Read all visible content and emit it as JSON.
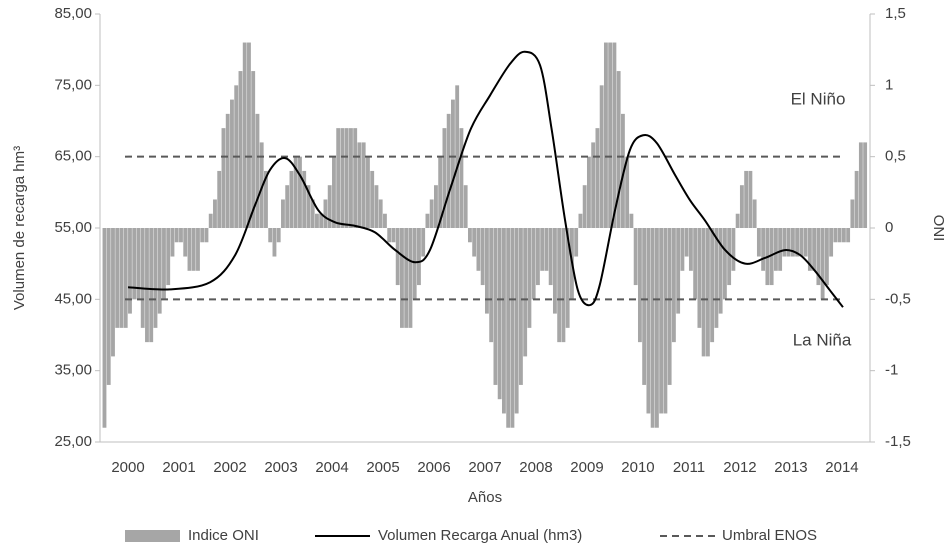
{
  "chart_data": {
    "type": "combo",
    "x_label": "Años",
    "y_label": "Volumen de recarga hm³",
    "y2_label": "ONI",
    "annotations": [
      "El Niño",
      "La Niña"
    ],
    "xlim": [
      1999.45,
      2014.55
    ],
    "xticks": [
      2000,
      2001,
      2002,
      2003,
      2004,
      2005,
      2006,
      2007,
      2008,
      2009,
      2010,
      2011,
      2012,
      2013,
      2014
    ],
    "ylim": [
      25,
      85
    ],
    "yticks": [
      {
        "value": 25,
        "label": "25,00"
      },
      {
        "value": 35,
        "label": "35,00"
      },
      {
        "value": 45,
        "label": "45,00"
      },
      {
        "value": 55,
        "label": "55,00"
      },
      {
        "value": 65,
        "label": "65,00"
      },
      {
        "value": 75,
        "label": "75,00"
      },
      {
        "value": 85,
        "label": "85,00"
      }
    ],
    "y2lim": [
      -1.5,
      1.5
    ],
    "y2ticks": [
      {
        "value": 1.5,
        "label": "1,5"
      },
      1,
      {
        "value": 0.5,
        "label": "0,5"
      },
      0,
      {
        "value": -0.5,
        "label": "-0,5"
      },
      -1,
      {
        "value": -1.5,
        "label": "-1,5"
      }
    ],
    "series": [
      {
        "name": "Indice ONI",
        "type": "bar",
        "axis": "y2",
        "color": "#a6a6a6",
        "values": [
          -1.4,
          -1.1,
          -0.9,
          -0.7,
          -0.7,
          -0.7,
          -0.6,
          -0.5,
          -0.5,
          -0.7,
          -0.8,
          -0.8,
          -0.7,
          -0.6,
          -0.5,
          -0.4,
          -0.2,
          -0.1,
          -0.1,
          -0.2,
          -0.3,
          -0.3,
          -0.3,
          -0.1,
          -0.1,
          0.1,
          0.2,
          0.4,
          0.7,
          0.8,
          0.9,
          1.0,
          1.1,
          1.3,
          1.3,
          1.1,
          0.8,
          0.6,
          0.4,
          -0.1,
          -0.2,
          -0.1,
          0.2,
          0.3,
          0.4,
          0.5,
          0.5,
          0.4,
          0.3,
          0.2,
          0.1,
          0.1,
          0.2,
          0.3,
          0.5,
          0.7,
          0.7,
          0.7,
          0.7,
          0.7,
          0.6,
          0.6,
          0.5,
          0.4,
          0.3,
          0.2,
          0.1,
          -0.1,
          -0.1,
          -0.4,
          -0.7,
          -0.7,
          -0.7,
          -0.5,
          -0.4,
          -0.2,
          0.1,
          0.2,
          0.3,
          0.5,
          0.7,
          0.8,
          0.9,
          1.0,
          0.7,
          0.3,
          -0.1,
          -0.2,
          -0.3,
          -0.4,
          -0.6,
          -0.8,
          -1.1,
          -1.2,
          -1.3,
          -1.4,
          -1.4,
          -1.3,
          -1.1,
          -0.9,
          -0.7,
          -0.5,
          -0.4,
          -0.3,
          -0.3,
          -0.4,
          -0.6,
          -0.8,
          -0.8,
          -0.7,
          -0.5,
          -0.2,
          0.1,
          0.3,
          0.5,
          0.6,
          0.7,
          1.0,
          1.3,
          1.3,
          1.3,
          1.1,
          0.8,
          0.5,
          0.1,
          -0.4,
          -0.8,
          -1.1,
          -1.3,
          -1.4,
          -1.4,
          -1.3,
          -1.3,
          -1.1,
          -0.8,
          -0.6,
          -0.3,
          -0.2,
          -0.3,
          -0.5,
          -0.7,
          -0.9,
          -0.9,
          -0.8,
          -0.7,
          -0.6,
          -0.5,
          -0.4,
          -0.3,
          0.1,
          0.3,
          0.4,
          0.4,
          0.2,
          -0.2,
          -0.3,
          -0.4,
          -0.4,
          -0.3,
          -0.3,
          -0.2,
          -0.2,
          -0.2,
          -0.2,
          -0.2,
          -0.2,
          -0.3,
          -0.3,
          -0.4,
          -0.5,
          -0.4,
          -0.2,
          -0.1,
          -0.1,
          -0.1,
          -0.1,
          0.2,
          0.4,
          0.6,
          0.6
        ]
      },
      {
        "name": "Volumen Recarga Anual (hm3)",
        "type": "line",
        "color": "#000000",
        "x": [
          2000.0,
          2000.82,
          2001.61,
          2002.1,
          2002.49,
          2002.78,
          2003.08,
          2003.37,
          2003.73,
          2004.06,
          2004.45,
          2004.84,
          2005.24,
          2005.63,
          2005.92,
          2006.31,
          2006.71,
          2007.1,
          2007.49,
          2007.78,
          2008.08,
          2008.31,
          2008.57,
          2008.82,
          2009.06,
          2009.25,
          2009.55,
          2009.84,
          2010.1,
          2010.37,
          2010.73,
          2011.02,
          2011.31,
          2011.71,
          2012.1,
          2012.49,
          2012.88,
          2013.18,
          2013.47,
          2013.76,
          2014.02
        ],
        "values": [
          46.7,
          46.4,
          47.4,
          51.2,
          58.2,
          63.1,
          64.8,
          62.4,
          57.5,
          55.8,
          55.3,
          54.4,
          51.9,
          50.2,
          51.9,
          60.3,
          68.7,
          73.6,
          78.0,
          79.7,
          77.8,
          68.7,
          56.1,
          46.3,
          44.2,
          47.0,
          57.5,
          65.9,
          68.0,
          66.9,
          62.4,
          58.9,
          56.1,
          51.9,
          50.0,
          50.8,
          51.9,
          51.2,
          49.0,
          46.3,
          43.9
        ]
      },
      {
        "name": "Umbral ENOS",
        "type": "hline",
        "axis": "y2",
        "color": "#595959",
        "values": [
          0.5,
          -0.5
        ]
      }
    ]
  }
}
